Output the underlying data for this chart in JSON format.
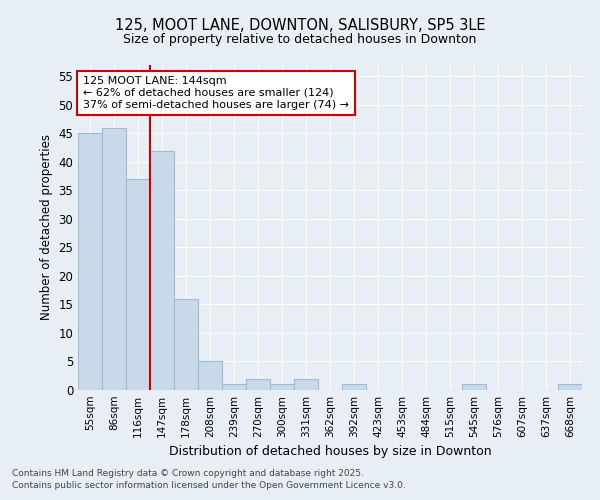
{
  "title1": "125, MOOT LANE, DOWNTON, SALISBURY, SP5 3LE",
  "title2": "Size of property relative to detached houses in Downton",
  "xlabel": "Distribution of detached houses by size in Downton",
  "ylabel": "Number of detached properties",
  "categories": [
    "55sqm",
    "86sqm",
    "116sqm",
    "147sqm",
    "178sqm",
    "208sqm",
    "239sqm",
    "270sqm",
    "300sqm",
    "331sqm",
    "362sqm",
    "392sqm",
    "423sqm",
    "453sqm",
    "484sqm",
    "515sqm",
    "545sqm",
    "576sqm",
    "607sqm",
    "637sqm",
    "668sqm"
  ],
  "values": [
    45,
    46,
    37,
    42,
    16,
    5,
    1,
    2,
    1,
    2,
    0,
    1,
    0,
    0,
    0,
    0,
    1,
    0,
    0,
    0,
    1
  ],
  "bar_color": "#c9d9ea",
  "bar_edgecolor": "#a0bcd4",
  "highlight_index": 3,
  "vline_color": "#cc0000",
  "ylim": [
    0,
    57
  ],
  "yticks": [
    0,
    5,
    10,
    15,
    20,
    25,
    30,
    35,
    40,
    45,
    50,
    55
  ],
  "annotation_line1": "125 MOOT LANE: 144sqm",
  "annotation_line2": "← 62% of detached houses are smaller (124)",
  "annotation_line3": "37% of semi-detached houses are larger (74) →",
  "annotation_box_color": "#ffffff",
  "annotation_box_edgecolor": "#cc0000",
  "footer1": "Contains HM Land Registry data © Crown copyright and database right 2025.",
  "footer2": "Contains public sector information licensed under the Open Government Licence v3.0.",
  "background_color": "#e8eef5"
}
